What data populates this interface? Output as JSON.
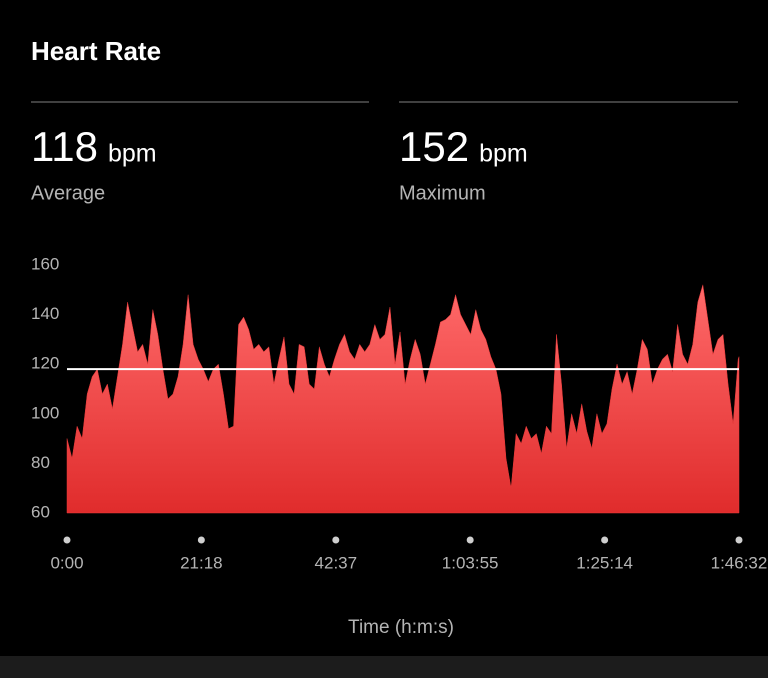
{
  "title": "Heart Rate",
  "stats": [
    {
      "value": 118,
      "unit": "bpm",
      "label": "Average"
    },
    {
      "value": 152,
      "unit": "bpm",
      "label": "Maximum"
    }
  ],
  "chart_data": {
    "type": "area",
    "xlabel": "Time (h:m:s)",
    "color": "#e83838",
    "average_line_color": "#ffffff",
    "xlim": [
      0,
      6392
    ],
    "ylim": [
      60,
      160
    ],
    "yticks": [
      60,
      80,
      100,
      120,
      140,
      160
    ],
    "xticks": [
      {
        "value": 0,
        "label": "0:00"
      },
      {
        "value": 1278,
        "label": "21:18"
      },
      {
        "value": 2557,
        "label": "42:37"
      },
      {
        "value": 3835,
        "label": "1:03:55"
      },
      {
        "value": 5114,
        "label": "1:25:14"
      },
      {
        "value": 6392,
        "label": "1:46:32"
      }
    ],
    "x": [
      0,
      48,
      96,
      144,
      192,
      240,
      288,
      336,
      384,
      432,
      480,
      528,
      576,
      624,
      672,
      720,
      768,
      816,
      864,
      912,
      960,
      1008,
      1056,
      1104,
      1152,
      1200,
      1248,
      1296,
      1344,
      1392,
      1440,
      1488,
      1536,
      1584,
      1632,
      1680,
      1728,
      1776,
      1824,
      1872,
      1920,
      1968,
      2016,
      2064,
      2112,
      2160,
      2208,
      2256,
      2304,
      2352,
      2400,
      2448,
      2496,
      2544,
      2592,
      2640,
      2688,
      2736,
      2784,
      2832,
      2880,
      2928,
      2976,
      3024,
      3072,
      3120,
      3168,
      3216,
      3264,
      3312,
      3360,
      3408,
      3456,
      3504,
      3552,
      3600,
      3648,
      3696,
      3744,
      3792,
      3840,
      3888,
      3936,
      3984,
      4032,
      4080,
      4128,
      4176,
      4224,
      4272,
      4320,
      4368,
      4416,
      4464,
      4512,
      4560,
      4608,
      4656,
      4704,
      4752,
      4800,
      4848,
      4896,
      4944,
      4992,
      5040,
      5088,
      5136,
      5184,
      5232,
      5280,
      5328,
      5376,
      5424,
      5472,
      5520,
      5568,
      5616,
      5664,
      5712,
      5760,
      5808,
      5856,
      5904,
      5952,
      6000,
      6048,
      6096,
      6144,
      6192,
      6240,
      6288,
      6336,
      6384,
      6392
    ],
    "y": [
      90,
      82,
      95,
      90,
      108,
      115,
      118,
      108,
      112,
      102,
      115,
      128,
      145,
      135,
      125,
      128,
      120,
      142,
      132,
      118,
      106,
      108,
      115,
      128,
      148,
      128,
      122,
      118,
      113,
      118,
      120,
      108,
      94,
      95,
      136,
      139,
      134,
      126,
      128,
      125,
      127,
      112,
      122,
      131,
      112,
      108,
      128,
      127,
      112,
      110,
      127,
      120,
      115,
      122,
      128,
      132,
      125,
      122,
      128,
      125,
      128,
      136,
      130,
      132,
      143,
      120,
      133,
      112,
      122,
      130,
      124,
      112,
      120,
      128,
      137,
      138,
      140,
      148,
      140,
      136,
      132,
      142,
      134,
      130,
      123,
      118,
      108,
      82,
      70,
      92,
      88,
      95,
      90,
      92,
      84,
      95,
      92,
      132,
      112,
      86,
      100,
      92,
      104,
      93,
      86,
      100,
      92,
      96,
      110,
      120,
      112,
      117,
      108,
      118,
      130,
      126,
      112,
      118,
      122,
      124,
      117,
      136,
      124,
      120,
      128,
      145,
      152,
      138,
      124,
      130,
      132,
      112,
      96,
      122,
      123
    ]
  }
}
